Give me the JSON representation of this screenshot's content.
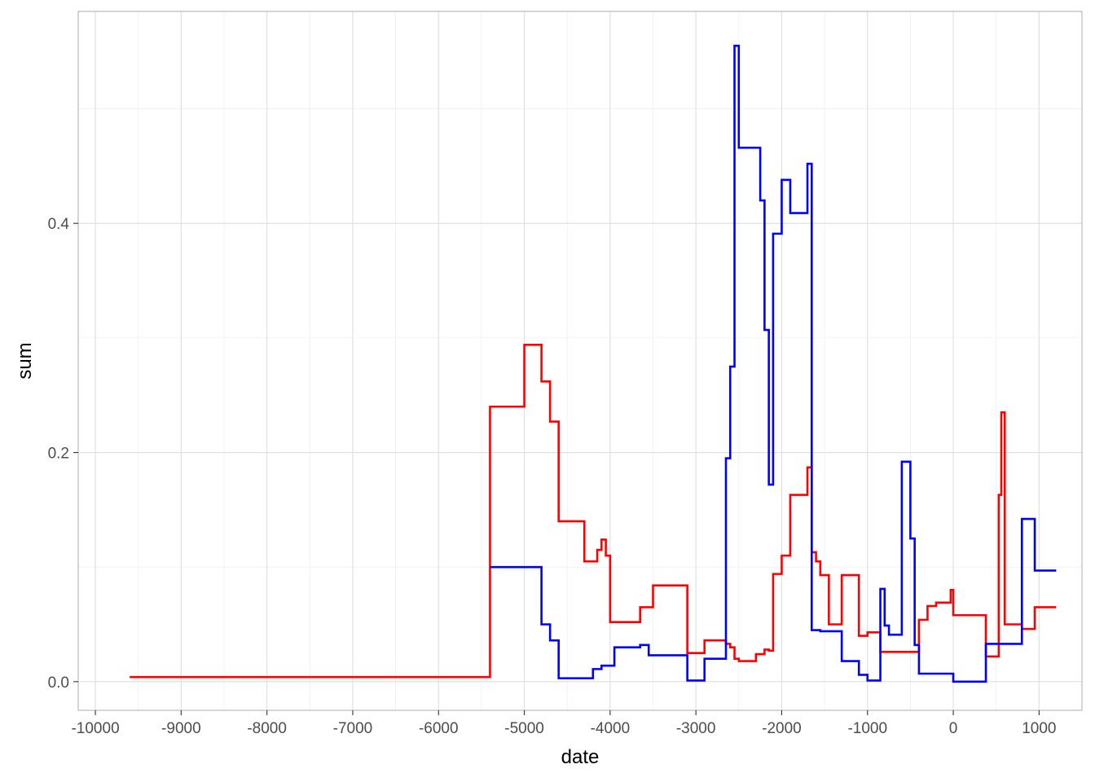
{
  "chart_data": {
    "type": "line",
    "step": true,
    "title": "",
    "xlabel": "date",
    "ylabel": "sum",
    "xlim": [
      -10200,
      1500
    ],
    "ylim": [
      -0.025,
      0.585
    ],
    "x_ticks": [
      -10000,
      -9000,
      -8000,
      -7000,
      -6000,
      -5000,
      -4000,
      -3000,
      -2000,
      -1000,
      0,
      1000
    ],
    "x_tick_labels": [
      "-10000",
      "-9000",
      "-8000",
      "-7000",
      "-6000",
      "-5000",
      "-4000",
      "-3000",
      "-2000",
      "-1000",
      "0",
      "1000"
    ],
    "y_ticks": [
      0.0,
      0.2,
      0.4
    ],
    "y_tick_labels": [
      "0.0",
      "0.2",
      "0.4"
    ],
    "grid": true,
    "legend": "none",
    "series": [
      {
        "color": "#ff0000",
        "x": [
          -9600,
          -5400,
          -5000,
          -4800,
          -4700,
          -4600,
          -4300,
          -4150,
          -4100,
          -4050,
          -4000,
          -3650,
          -3500,
          -3100,
          -2900,
          -2650,
          -2600,
          -2550,
          -2500,
          -2300,
          -2200,
          -2150,
          -2100,
          -2000,
          -1900,
          -1700,
          -1650,
          -1600,
          -1550,
          -1450,
          -1300,
          -1100,
          -1000,
          -850,
          -400,
          -300,
          -200,
          -30,
          0,
          380,
          530,
          560,
          600,
          650,
          800,
          950,
          1200
        ],
        "y": [
          0.004,
          0.24,
          0.294,
          0.262,
          0.227,
          0.14,
          0.105,
          0.115,
          0.124,
          0.11,
          0.052,
          0.065,
          0.084,
          0.025,
          0.036,
          0.033,
          0.03,
          0.02,
          0.018,
          0.024,
          0.028,
          0.027,
          0.094,
          0.11,
          0.163,
          0.187,
          0.113,
          0.105,
          0.093,
          0.05,
          0.093,
          0.04,
          0.043,
          0.026,
          0.054,
          0.066,
          0.069,
          0.08,
          0.058,
          0.022,
          0.163,
          0.235,
          0.05,
          0.05,
          0.046,
          0.065,
          0.065
        ]
      },
      {
        "color": "#0000ff",
        "x": [
          -5400,
          -4800,
          -4700,
          -4600,
          -4200,
          -4100,
          -3950,
          -3650,
          -3550,
          -3100,
          -2900,
          -2650,
          -2600,
          -2550,
          -2500,
          -2450,
          -2250,
          -2200,
          -2150,
          -2100,
          -2000,
          -1900,
          -1700,
          -1650,
          -1550,
          -1300,
          -1100,
          -1000,
          -850,
          -800,
          -750,
          -600,
          -500,
          -450,
          -400,
          -300,
          0,
          380,
          800,
          950,
          1200
        ],
        "y": [
          0.1,
          0.05,
          0.036,
          0.003,
          0.011,
          0.014,
          0.03,
          0.032,
          0.023,
          0.001,
          0.02,
          0.195,
          0.275,
          0.555,
          0.466,
          0.466,
          0.42,
          0.307,
          0.172,
          0.391,
          0.438,
          0.409,
          0.452,
          0.045,
          0.044,
          0.018,
          0.006,
          0.001,
          0.081,
          0.049,
          0.041,
          0.192,
          0.125,
          0.032,
          0.007,
          0.007,
          0.0,
          0.033,
          0.142,
          0.097,
          0.097
        ]
      }
    ]
  }
}
